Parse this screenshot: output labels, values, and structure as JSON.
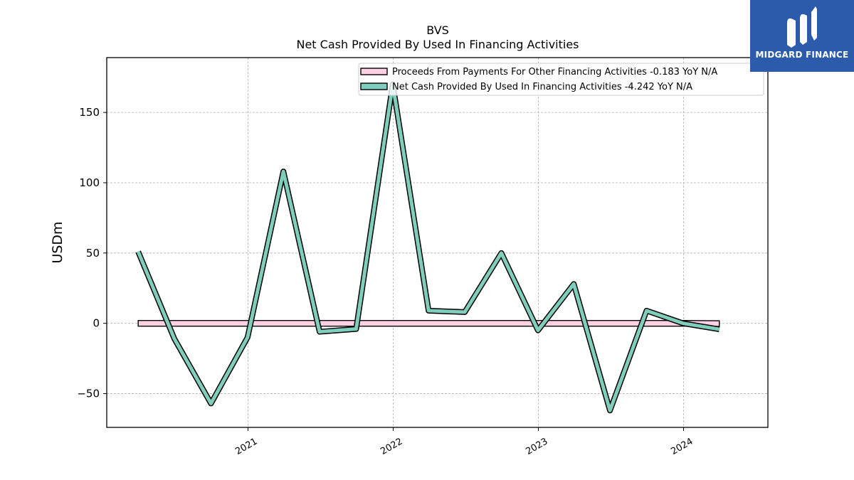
{
  "chart_data": {
    "type": "line",
    "title": "BVS",
    "subtitle": "Net Cash Provided By Used In Financing Activities",
    "ylabel": "USDm",
    "xlabel": "",
    "ylim": [
      -74,
      189
    ],
    "xlim": [
      "2020-01-12",
      "2024-07-31"
    ],
    "yticks": [
      -50,
      0,
      50,
      100,
      150
    ],
    "ytick_labels": [
      "−50",
      "0",
      "50",
      "100",
      "150"
    ],
    "xticks": [
      "2021-01-01",
      "2022-01-01",
      "2023-01-01",
      "2024-01-01"
    ],
    "xtick_labels": [
      "2021",
      "2022",
      "2023",
      "2024"
    ],
    "grid": true,
    "legend_position": "top-right",
    "x": [
      "2020-03-31",
      "2020-06-30",
      "2020-09-30",
      "2020-12-31",
      "2021-03-31",
      "2021-06-30",
      "2021-09-30",
      "2021-12-31",
      "2022-03-31",
      "2022-06-30",
      "2022-09-30",
      "2022-12-31",
      "2023-03-31",
      "2023-06-30",
      "2023-09-30",
      "2023-12-31",
      "2024-03-31"
    ],
    "series": [
      {
        "name": "Proceeds From Payments For Other Financing Activities  -0.183 YoY N/A",
        "color": "#ffd1e3",
        "style": "band",
        "values": [
          0,
          0,
          0,
          0,
          0,
          0,
          0,
          0,
          0,
          0,
          0,
          0,
          0,
          0,
          0,
          0,
          -0.183
        ]
      },
      {
        "name": "Net Cash Provided By Used In Financing Activities  -4.242 YoY N/A",
        "color": "#7fcdbb",
        "style": "line",
        "values": [
          51,
          -11,
          -57,
          -10,
          108,
          -6,
          -4,
          170,
          9,
          8,
          50,
          -5,
          28,
          -62,
          9,
          0,
          -4.242
        ]
      }
    ]
  },
  "brand": {
    "name": "MIDGARD FINANCE",
    "color": "#2d5bab",
    "icon": "midgard-logo-icon"
  }
}
